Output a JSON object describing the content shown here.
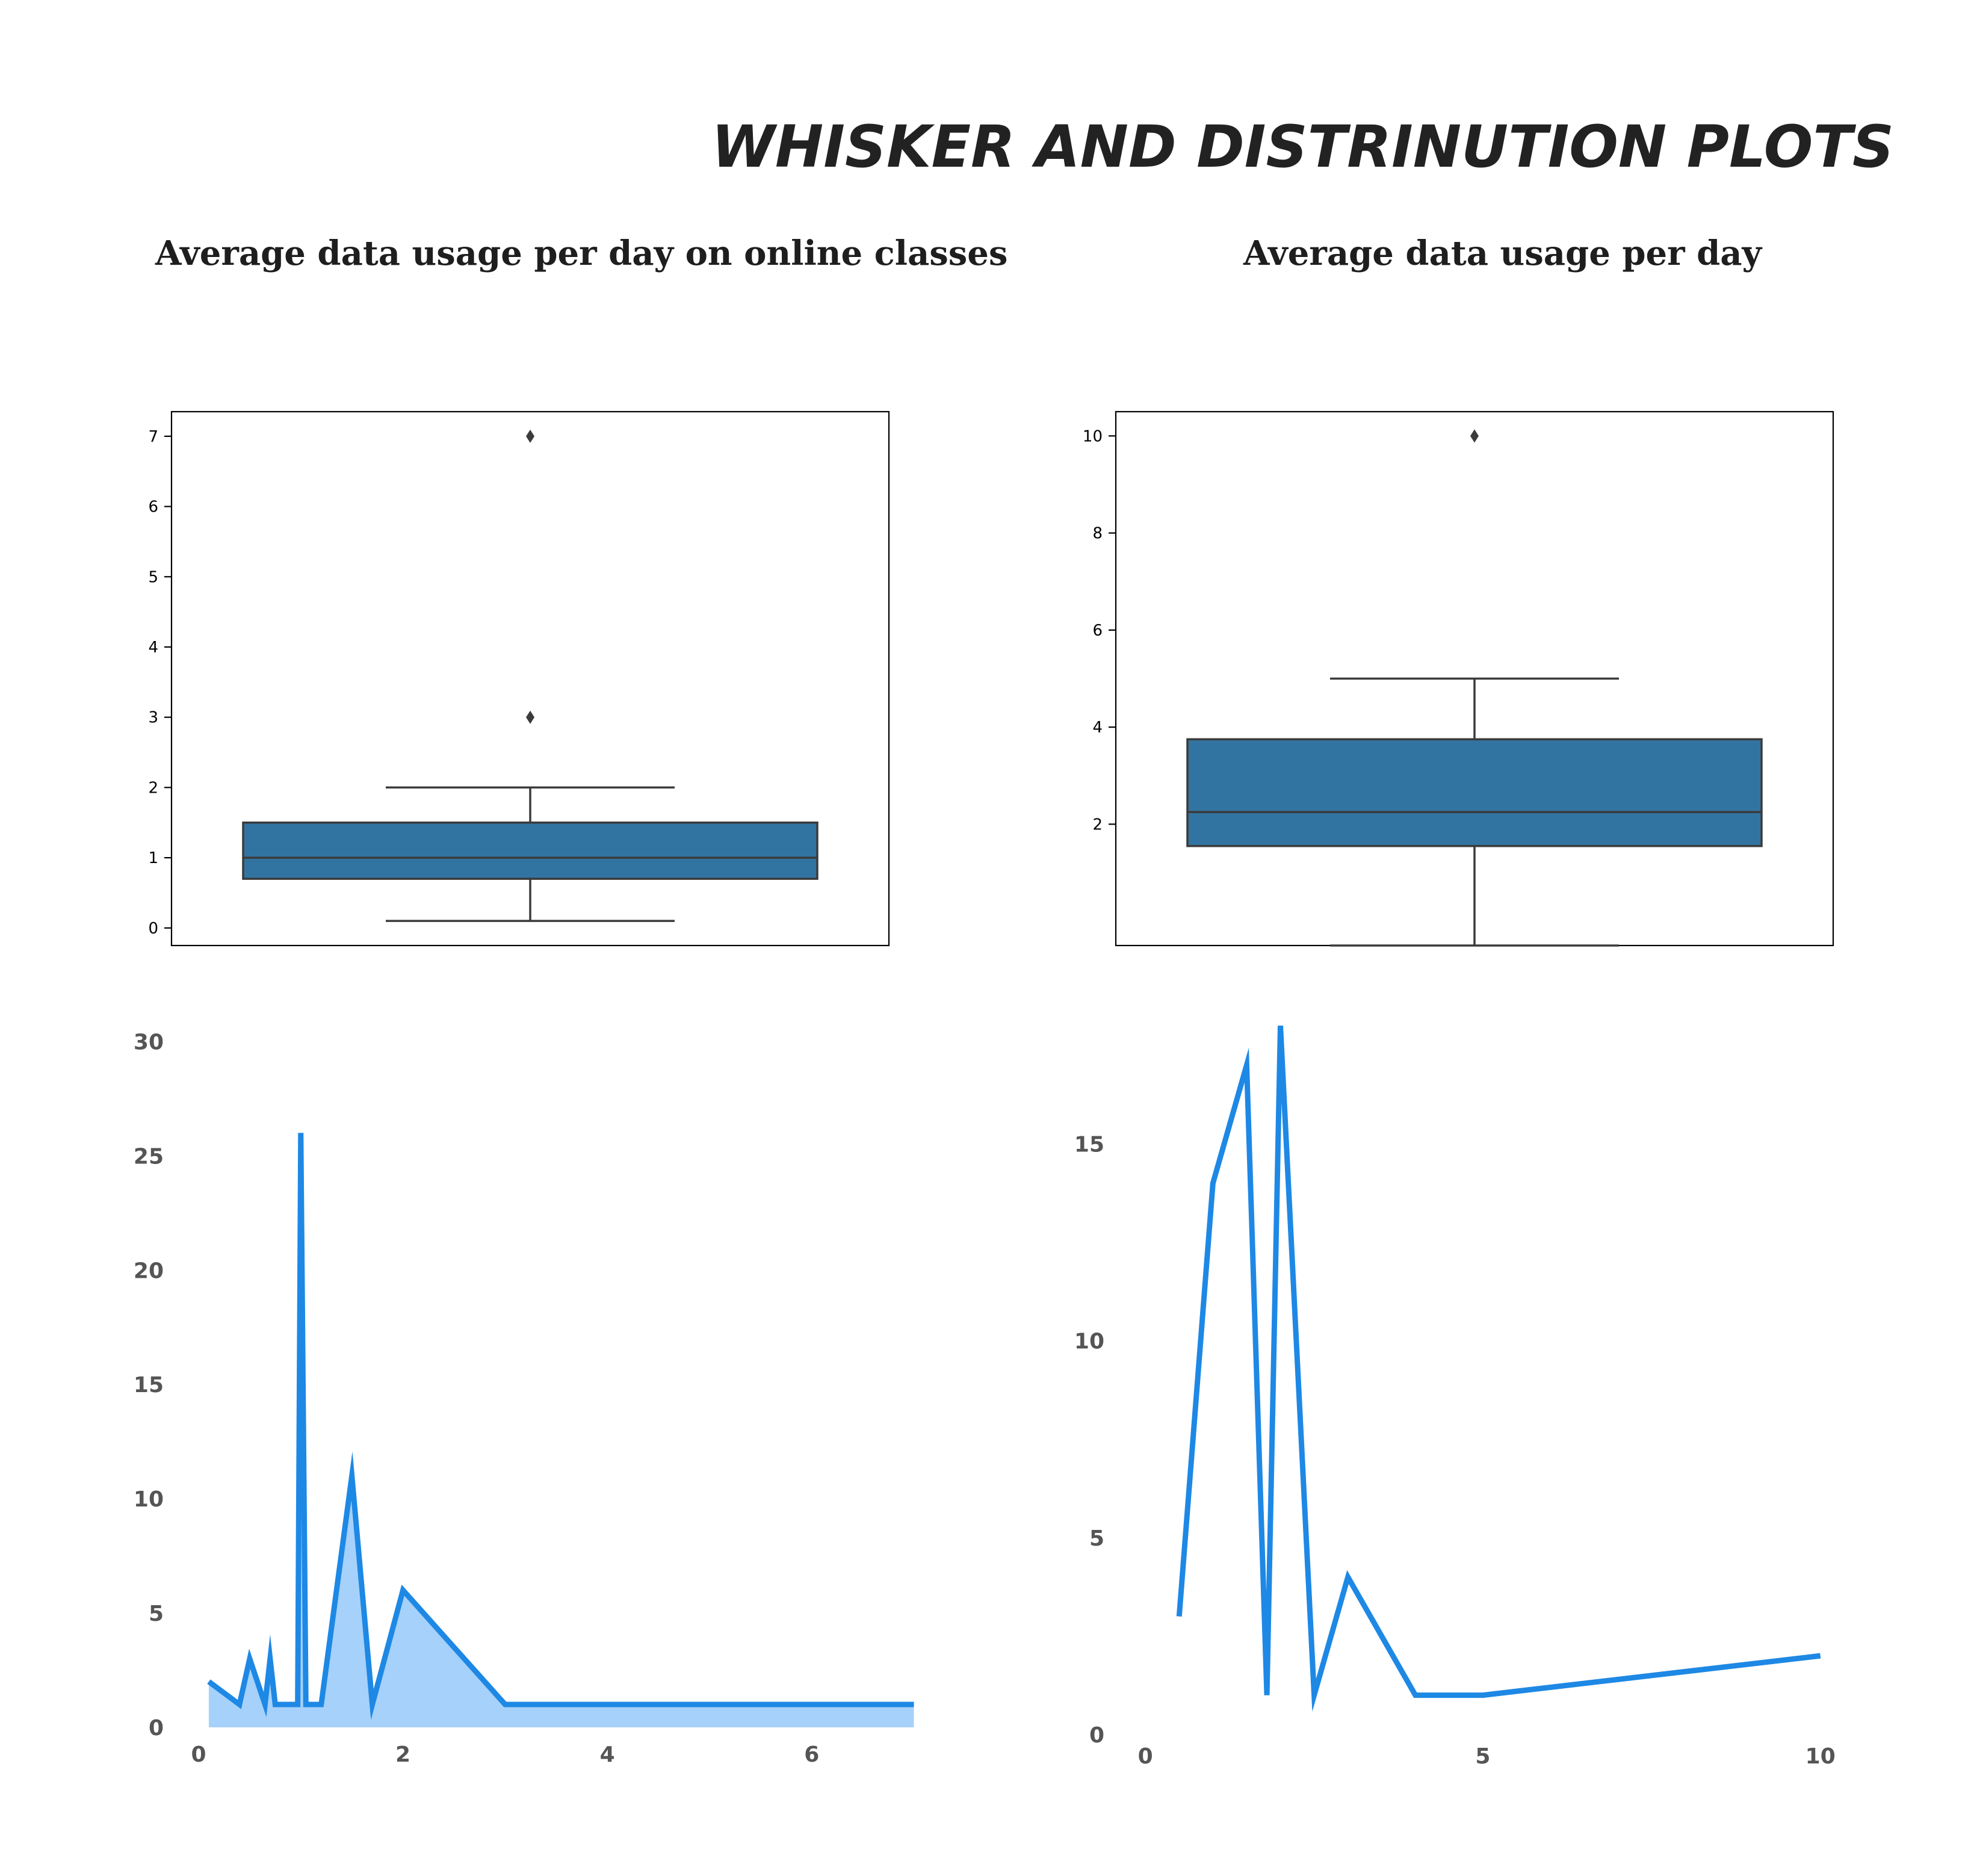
{
  "page": {
    "title": "WHISKER AND DISTRINUTION PLOTS",
    "left_column_title": "Average data usage per day on online classes",
    "right_column_title": "Average data usage per day"
  },
  "colors": {
    "box_fill": "#3274a1",
    "box_line": "#3b3b3b",
    "line_blue": "#1e88e5",
    "area_fill": "#a6d1fa",
    "tick_grey": "#555555"
  },
  "chart_data": [
    {
      "id": "box-online",
      "type": "box",
      "title": "",
      "ylim": [
        -0.25,
        7.35
      ],
      "yticks": [
        0,
        1,
        2,
        3,
        4,
        5,
        6,
        7
      ],
      "whisker_low": 0.1,
      "q1": 0.7,
      "median": 1.0,
      "q3": 1.5,
      "whisker_high": 2.0,
      "outliers": [
        3,
        7
      ]
    },
    {
      "id": "box-total",
      "type": "box",
      "title": "",
      "ylim": [
        -0.5,
        10.5
      ],
      "yticks": [
        2,
        4,
        6,
        8,
        10
      ],
      "whisker_low": -0.5,
      "q1": 1.55,
      "median": 2.25,
      "q3": 3.75,
      "whisker_high": 5.0,
      "outliers": [
        10
      ]
    },
    {
      "id": "dist-online",
      "type": "area",
      "title": "",
      "xlim": [
        -0.1,
        7.05
      ],
      "ylim": [
        0,
        30.8
      ],
      "xticks": [
        0,
        2,
        4,
        6
      ],
      "yticks": [
        0,
        5,
        10,
        15,
        20,
        25,
        30
      ],
      "x": [
        0.1,
        0.4,
        0.5,
        0.65,
        0.7,
        0.75,
        0.97,
        1.0,
        1.05,
        1.1,
        1.2,
        1.5,
        1.7,
        2.0,
        3.0,
        4.0,
        5.0,
        6.0,
        7.0
      ],
      "y": [
        2,
        1,
        3,
        1,
        3,
        1,
        1,
        26,
        1,
        1,
        1,
        11,
        1,
        6,
        1,
        1,
        1,
        1,
        1
      ]
    },
    {
      "id": "dist-total",
      "type": "line",
      "title": "",
      "xlim": [
        -0.1,
        10.6
      ],
      "ylim": [
        0,
        18.6
      ],
      "xticks": [
        0,
        5,
        10
      ],
      "yticks": [
        0,
        5,
        10,
        15
      ],
      "x": [
        0.5,
        1.0,
        1.5,
        1.8,
        2.0,
        2.5,
        3.0,
        4.0,
        5.0,
        10.0
      ],
      "y": [
        3,
        14,
        17,
        1,
        18,
        1,
        4,
        1,
        1,
        2
      ]
    }
  ]
}
